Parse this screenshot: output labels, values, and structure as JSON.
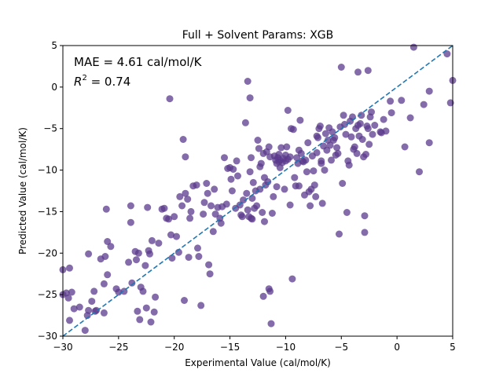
{
  "chart_data": {
    "type": "scatter",
    "title": "Full + Solvent Params: XGB",
    "xlabel": "Experimental Value (cal/mol/K)",
    "ylabel": "Predicted Value (cal/mol/K)",
    "xlim": [
      -30,
      5
    ],
    "ylim": [
      -30,
      5
    ],
    "xticks": [
      -30,
      -25,
      -20,
      -15,
      -10,
      -5,
      0,
      5
    ],
    "yticks": [
      -30,
      -25,
      -20,
      -15,
      -10,
      -5,
      0,
      5
    ],
    "tick_labels_x": [
      "−30",
      "−25",
      "−20",
      "−15",
      "−10",
      "−5",
      "0",
      "5"
    ],
    "tick_labels_y": [
      "−30",
      "−25",
      "−20",
      "−15",
      "−10",
      "−5",
      "0",
      "5"
    ],
    "grid": false,
    "annotations": {
      "mae": "MAE = 4.61 cal/mol/K",
      "r2_prefix": "R",
      "r2_sup": "2",
      "r2_value": " = 0.74"
    },
    "colors": {
      "points": "#5b3a8c",
      "identity_line": "#1f77b4"
    },
    "identity_line": {
      "x": [
        -30,
        5
      ],
      "y": [
        -30,
        5
      ]
    },
    "points": [
      [
        -30.0,
        -22.0
      ],
      [
        -30.0,
        -25.0
      ],
      [
        -29.7,
        -24.8
      ],
      [
        -29.5,
        -25.4
      ],
      [
        -29.4,
        -21.8
      ],
      [
        -29.4,
        -28.1
      ],
      [
        -29.2,
        -24.7
      ],
      [
        -29.0,
        -26.7
      ],
      [
        -28.5,
        -26.5
      ],
      [
        -28.0,
        -29.3
      ],
      [
        -27.8,
        -27.5
      ],
      [
        -27.7,
        -26.9
      ],
      [
        -27.7,
        -20.1
      ],
      [
        -27.4,
        -25.8
      ],
      [
        -27.2,
        -24.6
      ],
      [
        -27.1,
        -27.0
      ],
      [
        -27.0,
        -26.9
      ],
      [
        -26.6,
        -20.7
      ],
      [
        -26.3,
        -27.2
      ],
      [
        -26.3,
        -23.7
      ],
      [
        -26.2,
        -20.4
      ],
      [
        -26.1,
        -14.7
      ],
      [
        -26.0,
        -18.6
      ],
      [
        -26.0,
        -22.6
      ],
      [
        -25.7,
        -19.2
      ],
      [
        -25.2,
        -24.3
      ],
      [
        -25.0,
        -24.7
      ],
      [
        -24.5,
        -24.6
      ],
      [
        -24.1,
        -21.1
      ],
      [
        -23.9,
        -14.3
      ],
      [
        -23.9,
        -16.3
      ],
      [
        -23.8,
        -23.6
      ],
      [
        -23.5,
        -19.8
      ],
      [
        -23.4,
        -20.8
      ],
      [
        -23.3,
        -27.0
      ],
      [
        -23.2,
        -20.0
      ],
      [
        -23.1,
        -28.0
      ],
      [
        -23.0,
        -24.1
      ],
      [
        -22.8,
        -24.6
      ],
      [
        -22.6,
        -21.5
      ],
      [
        -22.5,
        -26.6
      ],
      [
        -22.4,
        -14.5
      ],
      [
        -22.3,
        -19.7
      ],
      [
        -22.2,
        -20.1
      ],
      [
        -22.1,
        -28.3
      ],
      [
        -22.0,
        -18.5
      ],
      [
        -21.8,
        -27.1
      ],
      [
        -21.7,
        -25.3
      ],
      [
        -21.4,
        -18.8
      ],
      [
        -21.1,
        -14.7
      ],
      [
        -20.9,
        -14.6
      ],
      [
        -20.7,
        -15.8
      ],
      [
        -20.5,
        -15.9
      ],
      [
        -20.4,
        -1.4
      ],
      [
        -20.3,
        -17.8
      ],
      [
        -20.2,
        -20.6
      ],
      [
        -20.0,
        -15.6
      ],
      [
        -19.8,
        -18.0
      ],
      [
        -19.6,
        -19.9
      ],
      [
        -19.5,
        -13.2
      ],
      [
        -19.3,
        -14.3
      ],
      [
        -19.2,
        -6.3
      ],
      [
        -19.1,
        -25.7
      ],
      [
        -19.0,
        -8.4
      ],
      [
        -19.0,
        -12.8
      ],
      [
        -18.8,
        -13.5
      ],
      [
        -18.7,
        -20.5
      ],
      [
        -18.6,
        -15.8
      ],
      [
        -18.5,
        -15.0
      ],
      [
        -18.3,
        -11.9
      ],
      [
        -18.0,
        -11.8
      ],
      [
        -17.9,
        -19.4
      ],
      [
        -17.8,
        -20.4
      ],
      [
        -17.6,
        -26.3
      ],
      [
        -17.4,
        -15.3
      ],
      [
        -17.3,
        -13.9
      ],
      [
        -17.1,
        -11.6
      ],
      [
        -17.0,
        -12.8
      ],
      [
        -16.9,
        -21.4
      ],
      [
        -16.8,
        -22.5
      ],
      [
        -16.7,
        -14.3
      ],
      [
        -16.5,
        -17.4
      ],
      [
        -16.4,
        -12.3
      ],
      [
        -16.3,
        -15.3
      ],
      [
        -16.1,
        -14.5
      ],
      [
        -15.9,
        -15.8
      ],
      [
        -15.8,
        -16.4
      ],
      [
        -15.7,
        -14.4
      ],
      [
        -15.5,
        -8.5
      ],
      [
        -15.3,
        -14.1
      ],
      [
        -15.2,
        -9.8
      ],
      [
        -15.0,
        -9.7
      ],
      [
        -14.9,
        -11.1
      ],
      [
        -14.8,
        -12.5
      ],
      [
        -14.7,
        -9.9
      ],
      [
        -14.5,
        -14.6
      ],
      [
        -14.4,
        -8.9
      ],
      [
        -14.3,
        -10.7
      ],
      [
        -14.1,
        -14.2
      ],
      [
        -14.0,
        -15.4
      ],
      [
        -13.9,
        -15.6
      ],
      [
        -13.8,
        -13.6
      ],
      [
        -13.6,
        -4.3
      ],
      [
        -13.5,
        -12.8
      ],
      [
        -13.4,
        -14.8
      ],
      [
        -13.3,
        -15.6
      ],
      [
        -13.2,
        -10.2
      ],
      [
        -13.1,
        -15.8
      ],
      [
        -13.1,
        -8.5
      ],
      [
        -13.0,
        -13.4
      ],
      [
        -13.0,
        -15.9
      ],
      [
        -12.9,
        -11.5
      ],
      [
        -12.8,
        -14.6
      ],
      [
        -12.7,
        -12.5
      ],
      [
        -12.6,
        -14.3
      ],
      [
        -12.5,
        -6.4
      ],
      [
        -12.4,
        -7.4
      ],
      [
        -12.3,
        -9.6
      ],
      [
        -12.2,
        -9.2
      ],
      [
        -12.1,
        -15.1
      ],
      [
        -12.0,
        -8.0
      ],
      [
        -12.0,
        -25.2
      ],
      [
        -11.9,
        -16.2
      ],
      [
        -11.8,
        -11.8
      ],
      [
        -11.7,
        -7.8
      ],
      [
        -11.6,
        -11.4
      ],
      [
        -11.5,
        -24.3
      ],
      [
        -11.4,
        -8.4
      ],
      [
        -11.4,
        -24.6
      ],
      [
        -11.3,
        -28.5
      ],
      [
        -11.2,
        -15.2
      ],
      [
        -11.1,
        -13.2
      ],
      [
        -11.0,
        -8.3
      ],
      [
        -10.9,
        -8.8
      ],
      [
        -10.8,
        -12.0
      ],
      [
        -10.8,
        -9.2
      ],
      [
        -10.7,
        -8.5
      ],
      [
        -10.6,
        -9.0
      ],
      [
        -10.5,
        -8.8
      ],
      [
        -10.5,
        -9.7
      ],
      [
        -10.4,
        -7.3
      ],
      [
        -10.3,
        -9.1
      ],
      [
        -10.2,
        -8.6
      ],
      [
        -10.1,
        -12.3
      ],
      [
        -10.0,
        -8.2
      ],
      [
        -9.9,
        -7.2
      ],
      [
        -9.8,
        -2.8
      ],
      [
        -9.8,
        -8.7
      ],
      [
        -9.6,
        -14.2
      ],
      [
        -9.5,
        -5.0
      ],
      [
        -9.4,
        -23.1
      ],
      [
        -9.3,
        -5.1
      ],
      [
        -9.2,
        -10.9
      ],
      [
        -9.1,
        -11.9
      ],
      [
        -9.0,
        -8.5
      ],
      [
        -8.9,
        -9.2
      ],
      [
        -8.8,
        -7.6
      ],
      [
        -8.7,
        -4.0
      ],
      [
        -8.6,
        -8.0
      ],
      [
        -8.5,
        -8.9
      ],
      [
        -8.4,
        -9.0
      ],
      [
        -8.3,
        -13.0
      ],
      [
        -8.2,
        -8.8
      ],
      [
        -8.1,
        -10.2
      ],
      [
        -8.0,
        -6.7
      ],
      [
        -7.9,
        -12.6
      ],
      [
        -7.8,
        -14.3
      ],
      [
        -7.7,
        -12.3
      ],
      [
        -7.6,
        -8.3
      ],
      [
        -7.5,
        -10.1
      ],
      [
        -7.4,
        -11.8
      ],
      [
        -7.3,
        -13.2
      ],
      [
        -7.2,
        -7.9
      ],
      [
        -7.1,
        -6.1
      ],
      [
        -7.0,
        -5.0
      ],
      [
        -6.9,
        -4.7
      ],
      [
        -6.8,
        -9.2
      ],
      [
        -6.7,
        -14.0
      ],
      [
        -6.6,
        -7.1
      ],
      [
        -6.5,
        -10.0
      ],
      [
        -6.4,
        -5.6
      ],
      [
        -6.3,
        -7.6
      ],
      [
        -6.2,
        -6.4
      ],
      [
        -6.1,
        -4.9
      ],
      [
        -6.0,
        -7.0
      ],
      [
        -5.9,
        -8.8
      ],
      [
        -5.8,
        -5.4
      ],
      [
        -5.7,
        -6.4
      ],
      [
        -5.6,
        -6.1
      ],
      [
        -5.5,
        -8.2
      ],
      [
        -5.4,
        -7.3
      ],
      [
        -5.3,
        -8.0
      ],
      [
        -5.2,
        -17.7
      ],
      [
        -5.1,
        -4.8
      ],
      [
        -5.0,
        2.4
      ],
      [
        -4.9,
        -11.6
      ],
      [
        -4.8,
        -3.4
      ],
      [
        -4.7,
        -4.5
      ],
      [
        -4.6,
        -5.7
      ],
      [
        -4.5,
        -15.1
      ],
      [
        -4.4,
        -8.9
      ],
      [
        -4.3,
        -9.4
      ],
      [
        -4.2,
        -4.1
      ],
      [
        -4.1,
        -6.0
      ],
      [
        -4.0,
        -3.6
      ],
      [
        -3.9,
        -7.5
      ],
      [
        -3.8,
        -7.2
      ],
      [
        -3.7,
        -5.0
      ],
      [
        -3.6,
        -8.0
      ],
      [
        -3.5,
        -4.6
      ],
      [
        -3.4,
        -5.9
      ],
      [
        -3.3,
        -4.4
      ],
      [
        -3.2,
        -3.4
      ],
      [
        -3.1,
        -6.3
      ],
      [
        -3.0,
        -8.4
      ],
      [
        -2.9,
        -15.5
      ],
      [
        -2.9,
        -17.5
      ],
      [
        -2.8,
        -8.1
      ],
      [
        -2.7,
        -4.7
      ],
      [
        -2.6,
        -5.0
      ],
      [
        -2.5,
        -6.9
      ],
      [
        -2.4,
        -3.6
      ],
      [
        -2.3,
        -3.0
      ],
      [
        -2.2,
        -5.7
      ],
      [
        -2.0,
        -4.6
      ],
      [
        -1.5,
        -5.4
      ],
      [
        -1.4,
        -5.5
      ],
      [
        -1.2,
        -3.9
      ],
      [
        -1.0,
        -5.3
      ],
      [
        -0.6,
        -1.7
      ],
      [
        -0.5,
        -3.1
      ],
      [
        0.4,
        -1.6
      ],
      [
        0.7,
        -7.2
      ],
      [
        1.2,
        -3.7
      ],
      [
        1.5,
        4.8
      ],
      [
        2.0,
        -10.2
      ],
      [
        2.4,
        -2.1
      ],
      [
        2.9,
        -6.7
      ],
      [
        2.9,
        -0.5
      ],
      [
        4.5,
        4.0
      ],
      [
        4.8,
        -1.9
      ],
      [
        5.0,
        0.8
      ],
      [
        -13.4,
        0.7
      ],
      [
        -13.2,
        -1.3
      ],
      [
        -3.5,
        1.8
      ],
      [
        -2.6,
        2.0
      ],
      [
        -8.8,
        -11.9
      ],
      [
        -7.2,
        -5.9
      ],
      [
        -6.8,
        -8.9
      ],
      [
        -10.0,
        -8.9
      ],
      [
        -9.6,
        -8.4
      ],
      [
        -10.6,
        -8.1
      ],
      [
        -11.5,
        -7.2
      ],
      [
        -12.3,
        -12.3
      ],
      [
        -11.9,
        -10.9
      ]
    ]
  }
}
